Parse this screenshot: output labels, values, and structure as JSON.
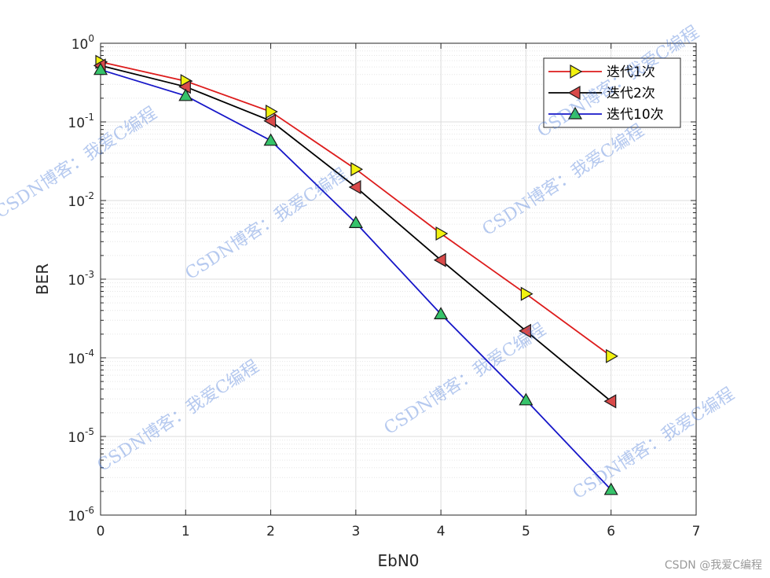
{
  "chart_data": {
    "type": "line",
    "xlabel": "EbN0",
    "ylabel": "BER",
    "xlim": [
      0,
      7
    ],
    "ylim": [
      1e-06,
      1
    ],
    "yscale": "log",
    "grid": "major and minor",
    "legend_position": "top-right",
    "x_ticks": [
      0,
      1,
      2,
      3,
      4,
      5,
      6,
      7
    ],
    "y_ticks": [
      {
        "mantissa": "10",
        "exp": "0"
      },
      {
        "mantissa": "10",
        "exp": "-1"
      },
      {
        "mantissa": "10",
        "exp": "-2"
      },
      {
        "mantissa": "10",
        "exp": "-3"
      },
      {
        "mantissa": "10",
        "exp": "-4"
      },
      {
        "mantissa": "10",
        "exp": "-5"
      },
      {
        "mantissa": "10",
        "exp": "-6"
      }
    ],
    "x": [
      0,
      1,
      2,
      3,
      4,
      5,
      6
    ],
    "series": [
      {
        "name": "迭代1次",
        "color": "#dd1c1c",
        "marker": "triangle-right",
        "marker_color": "#f2f20f",
        "values": [
          0.58,
          0.33,
          0.135,
          0.025,
          0.0038,
          0.00065,
          0.000105
        ]
      },
      {
        "name": "迭代2次",
        "color": "#000000",
        "marker": "triangle-left",
        "marker_color": "#d94a4a",
        "values": [
          0.52,
          0.28,
          0.103,
          0.0148,
          0.00175,
          0.00022,
          2.8e-05
        ]
      },
      {
        "name": "迭代10次",
        "color": "#1616c8",
        "marker": "triangle-up",
        "marker_color": "#36c36a",
        "values": [
          0.46,
          0.215,
          0.058,
          0.0052,
          0.00036,
          2.9e-05,
          2.1e-06
        ]
      }
    ]
  },
  "watermarks": [
    "CSDN博客：我爱C编程",
    "CSDN博客：我爱C编程",
    "CSDN博客：我爱C编程",
    "CSDN博客：我爱C编程",
    "CSDN博客：我爱C编程",
    "CSDN博客：我爱C编程",
    "CSDN博客：我爱C编程"
  ],
  "credit": "CSDN @我爱C编程"
}
